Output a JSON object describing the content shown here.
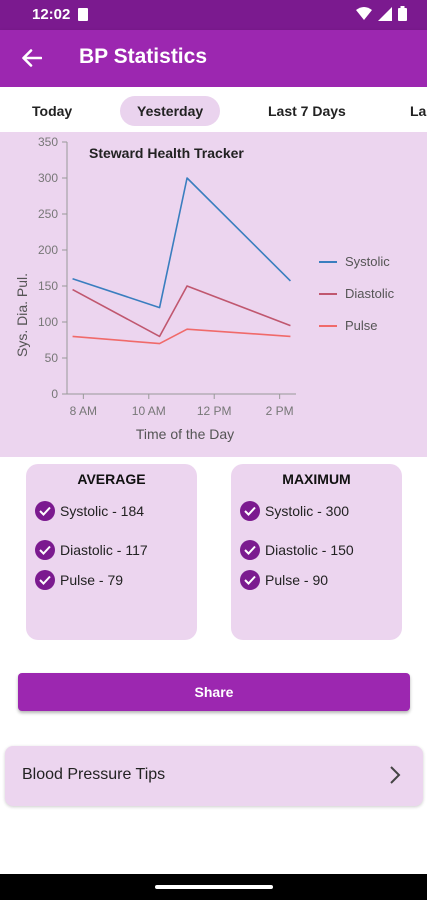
{
  "status_bar": {
    "time": "12:02"
  },
  "app_bar": {
    "title": "BP Statistics"
  },
  "tabs": [
    {
      "label": "Today",
      "active": false
    },
    {
      "label": "Yesterday",
      "active": true
    },
    {
      "label": "Last 7 Days",
      "active": false
    },
    {
      "label": "La",
      "active": false
    }
  ],
  "chart_data": {
    "type": "line",
    "title": "Steward Health Tracker",
    "xlabel": "Time of the Day",
    "ylabel": "Sys. Dia. Pul.",
    "x": [
      "7:40 AM",
      "10:20 AM",
      "11:10 AM",
      "2:20 PM"
    ],
    "x_hours": [
      7.67,
      10.33,
      11.17,
      14.33
    ],
    "xticks": [
      "8 AM",
      "10 AM",
      "12 PM",
      "2 PM"
    ],
    "xtick_hours": [
      8,
      10,
      12,
      14
    ],
    "xlim_hours": [
      7.5,
      14.5
    ],
    "ylim": [
      0,
      350
    ],
    "yticks": [
      "0",
      "50",
      "100",
      "150",
      "200",
      "250",
      "300",
      "350"
    ],
    "ytick_values": [
      0,
      50,
      100,
      150,
      200,
      250,
      300,
      350
    ],
    "grid": false,
    "legend": "right",
    "series": [
      {
        "name": "Systolic",
        "color": "#3a7ebf",
        "values": [
          160,
          120,
          300,
          157
        ]
      },
      {
        "name": "Diastolic",
        "color": "#c0576f",
        "values": [
          145,
          80,
          150,
          95
        ]
      },
      {
        "name": "Pulse",
        "color": "#f06a6a",
        "values": [
          80,
          70,
          90,
          80
        ]
      }
    ]
  },
  "average": {
    "title": "AVERAGE",
    "items": [
      "Systolic - 184",
      "Diastolic - 117",
      "Pulse - 79"
    ]
  },
  "maximum": {
    "title": "MAXIMUM",
    "items": [
      "Systolic - 300",
      "Diastolic - 150",
      "Pulse - 90"
    ]
  },
  "share": {
    "label": "Share"
  },
  "tips": {
    "label": "Blood Pressure Tips"
  },
  "colors": {
    "primary": "#9c27b0",
    "primary_dark": "#7b1a8f",
    "panel": "#ecd5ef"
  }
}
